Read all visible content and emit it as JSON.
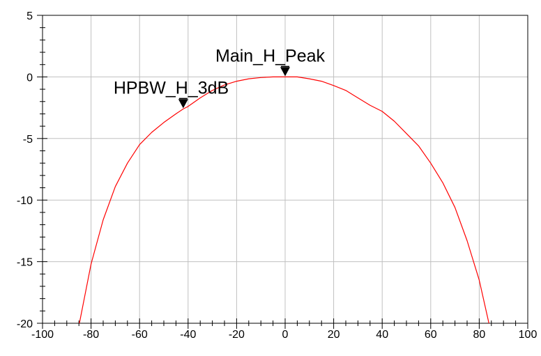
{
  "chart_data": {
    "type": "line",
    "title": "",
    "xlabel": "",
    "ylabel": "",
    "xlim": [
      -100,
      100
    ],
    "ylim": [
      -20,
      5
    ],
    "grid": true,
    "x_ticks": [
      -100,
      -80,
      -60,
      -40,
      -20,
      0,
      20,
      40,
      60,
      80,
      100
    ],
    "y_ticks": [
      5,
      0,
      -5,
      -10,
      -15,
      -20
    ],
    "series": [
      {
        "color": "#ff0000",
        "x": [
          -84.8,
          -80,
          -75,
          -70,
          -65,
          -60,
          -55,
          -50,
          -45,
          -42,
          -40,
          -35,
          -30,
          -25,
          -20,
          -15,
          -10,
          -5,
          0,
          5,
          10,
          15,
          20,
          25,
          30,
          35,
          40,
          45,
          50,
          55,
          60,
          65,
          70,
          75,
          80,
          84
        ],
        "y": [
          -20,
          -15.2,
          -11.6,
          -8.9,
          -7.0,
          -5.5,
          -4.5,
          -3.7,
          -3.0,
          -2.6,
          -2.4,
          -1.7,
          -1.1,
          -0.65,
          -0.35,
          -0.15,
          -0.05,
          0,
          0,
          0,
          -0.15,
          -0.35,
          -0.7,
          -1.1,
          -1.7,
          -2.3,
          -2.8,
          -3.6,
          -4.6,
          -5.6,
          -7.0,
          -8.6,
          -10.6,
          -13.3,
          -16.5,
          -20
        ]
      }
    ],
    "markers": [
      {
        "label": "Main_H_Peak",
        "x": 0,
        "y": 0
      },
      {
        "label": "HPBW_H_3dB",
        "x": -42,
        "y": -2.6
      }
    ]
  }
}
